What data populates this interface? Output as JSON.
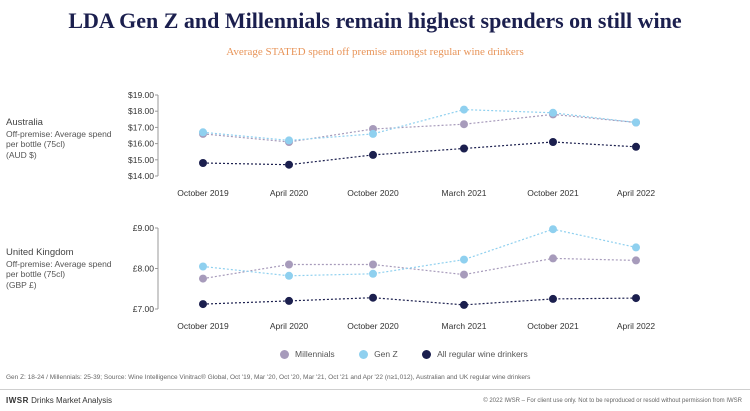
{
  "title": "LDA Gen Z and Millennials remain highest spenders on still wine",
  "subtitle": "Average STATED spend off premise amongst regular wine drinkers",
  "legend": {
    "millennials": "Millennials",
    "genz": "Gen Z",
    "all": "All regular wine drinkers"
  },
  "colors": {
    "millennials": "#a79bbb",
    "genz": "#8fd0ef",
    "all": "#1b1f4e"
  },
  "australia_label": {
    "country": "Australia",
    "line1": "Off-premise: Average spend",
    "line2": "per bottle (75cl)",
    "line3": "(AUD $)"
  },
  "uk_label": {
    "country": "United Kingdom",
    "line1": "Off-premise: Average spend",
    "line2": "per bottle (75cl)",
    "line3": "(GBP £)"
  },
  "footnote": "Gen Z: 18-24 / Millennials: 25-39; Source: Wine Intelligence Vinitrac® Global, Oct '19, Mar '20, Oct '20, Mar '21, Oct '21 and Apr '22 (n≥1,012), Australian and UK regular wine drinkers",
  "brand": {
    "name": "IWSR",
    "rest": " Drinks Market Analysis"
  },
  "copyright": "© 2022 IWSR – For client use only. Not to be reproduced or resold without permission from IWSR",
  "chart_data": [
    {
      "type": "line",
      "title": "Australia",
      "categories": [
        "October 2019",
        "April 2020",
        "October 2020",
        "March 2021",
        "October 2021",
        "April 2022"
      ],
      "yticks": [
        "$19.00",
        "$18.00",
        "$17.00",
        "$16.00",
        "$15.00",
        "$14.00"
      ],
      "ylim": [
        14,
        19
      ],
      "series": [
        {
          "name": "Millennials",
          "values": [
            16.6,
            16.1,
            16.9,
            17.2,
            17.8,
            17.3
          ]
        },
        {
          "name": "Gen Z",
          "values": [
            16.7,
            16.2,
            16.6,
            18.1,
            17.9,
            17.3
          ]
        },
        {
          "name": "All regular wine drinkers",
          "values": [
            14.8,
            14.7,
            15.3,
            15.7,
            16.1,
            15.8
          ]
        }
      ]
    },
    {
      "type": "line",
      "title": "United Kingdom",
      "categories": [
        "October 2019",
        "April 2020",
        "October 2020",
        "March 2021",
        "October 2021",
        "April 2022"
      ],
      "yticks": [
        "£9.00",
        "£8.00",
        "£7.00"
      ],
      "ylim": [
        7,
        9
      ],
      "series": [
        {
          "name": "Millennials",
          "values": [
            7.75,
            8.1,
            8.1,
            7.85,
            8.25,
            8.2
          ]
        },
        {
          "name": "Gen Z",
          "values": [
            8.05,
            7.82,
            7.87,
            8.22,
            8.97,
            8.52
          ]
        },
        {
          "name": "All regular wine drinkers",
          "values": [
            7.12,
            7.2,
            7.28,
            7.1,
            7.25,
            7.27
          ]
        }
      ]
    }
  ]
}
